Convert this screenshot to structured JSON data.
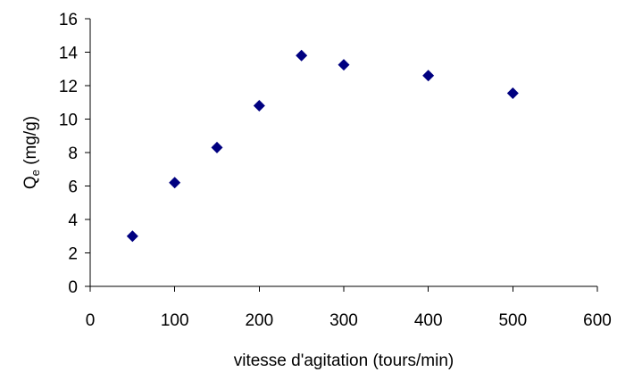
{
  "chart_data": {
    "type": "scatter",
    "xlabel": "vitesse d'agitation (tours/min)",
    "ylabel": "Q_e (mg/g)",
    "ylabel_parts": {
      "base": "Q",
      "sub": "e",
      "rest": " (mg/g)"
    },
    "xlim": [
      0,
      600
    ],
    "ylim": [
      0,
      16
    ],
    "x_ticks": [
      0,
      100,
      200,
      300,
      400,
      500,
      600
    ],
    "y_ticks": [
      0,
      2,
      4,
      6,
      8,
      10,
      12,
      14,
      16
    ],
    "grid": false,
    "marker": "diamond",
    "marker_color": "#000080",
    "series": [
      {
        "x": [
          50,
          100,
          150,
          200,
          250,
          300,
          400,
          500
        ],
        "y": [
          3.0,
          6.2,
          8.3,
          10.8,
          13.8,
          13.25,
          12.6,
          11.55
        ]
      }
    ]
  }
}
